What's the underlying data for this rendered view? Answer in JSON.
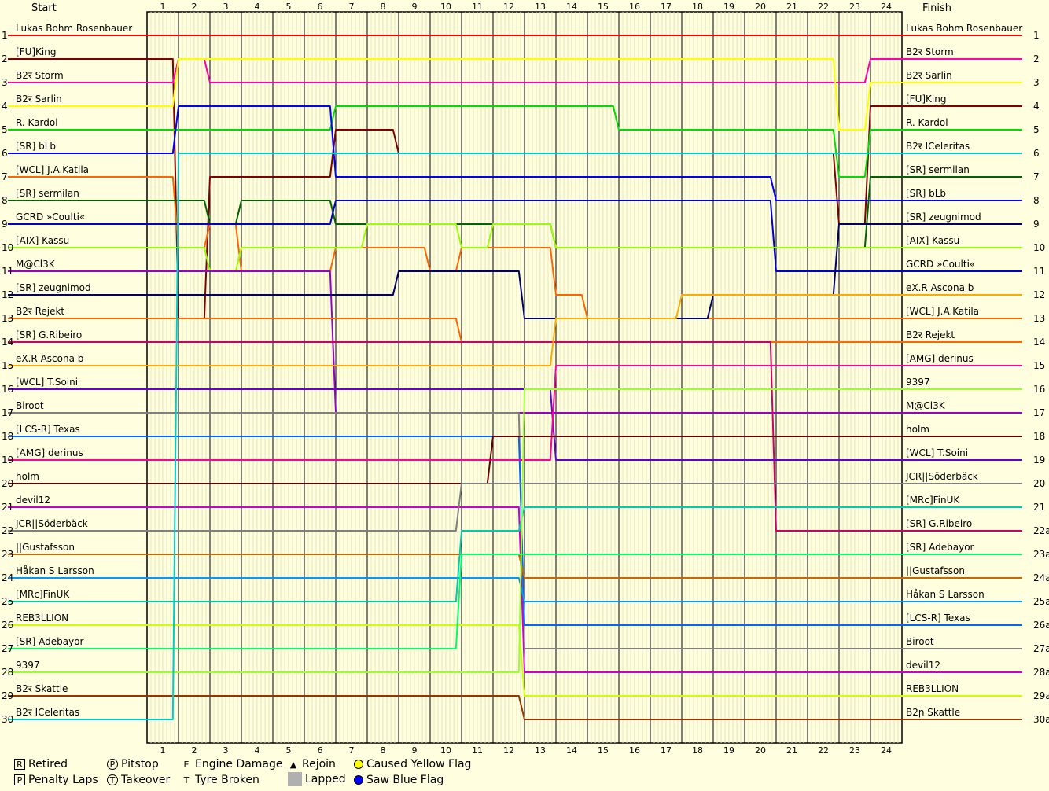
{
  "chart_data": {
    "type": "line",
    "header_start": "Start",
    "header_finish": "Finish",
    "laps": [
      1,
      2,
      3,
      4,
      5,
      6,
      7,
      8,
      9,
      10,
      11,
      12,
      13,
      14,
      15,
      16,
      17,
      18,
      19,
      20,
      21,
      22,
      23,
      24
    ],
    "positions_left": [
      "1",
      "2",
      "3",
      "4",
      "5",
      "6",
      "7",
      "8",
      "9",
      "10",
      "11",
      "12",
      "13",
      "14",
      "15",
      "16",
      "17",
      "18",
      "19",
      "20",
      "21",
      "22",
      "23",
      "24",
      "25",
      "26",
      "27",
      "28",
      "29",
      "30"
    ],
    "positions_right": [
      "1",
      "2",
      "3",
      "4",
      "5",
      "6",
      "7",
      "8",
      "9",
      "10",
      "11",
      "12",
      "13",
      "14",
      "15",
      "16",
      "17",
      "18",
      "19",
      "20",
      "21",
      "22a",
      "23a",
      "24a",
      "25a",
      "26a",
      "27a",
      "28a",
      "29a",
      "30a"
    ],
    "start_grid": [
      "Lukas Bohm Rosenbauer",
      "[FU]King",
      "B2र Storm",
      "B2र Sarlin",
      "R. Kardol",
      "[SR] bLb",
      "[WCL] J.A.Katila",
      "[SR] sermilan",
      "GCRD »Coulti«",
      "[AIX] Kassu",
      "M@Cl3K",
      "[SR] zeugnimod",
      "B2र Rejekt",
      "[SR] G.Ribeiro",
      "eX.R Ascona b",
      "[WCL] T.Soini",
      "Biroot",
      "[LCS-R] Texas",
      "[AMG] derinus",
      "holm",
      "devil12",
      "JCR||Söderbäck",
      "||Gustafsson",
      "Håkan S Larsson",
      "[MRc]FinUK",
      "REB3LLION",
      "[SR] Adebayor",
      "9397",
      "B2र Skattle",
      "B2र ICeleritas"
    ],
    "finish_order": [
      "Lukas Bohm Rosenbauer",
      "B2र Storm",
      "B2र Sarlin",
      "[FU]King",
      "R. Kardol",
      "B2र ICeleritas",
      "[SR] sermilan",
      "[SR] bLb",
      "[SR] zeugnimod",
      "[AIX] Kassu",
      "GCRD »Coulti«",
      "eX.R Ascona b",
      "[WCL] J.A.Katila",
      "B2र Rejekt",
      "[AMG] derinus",
      "9397",
      "M@Cl3K",
      "holm",
      "[WCL] T.Soini",
      "JCR||Söderbäck",
      "[MRc]FinUK",
      "[SR] G.Ribeiro",
      "[SR] Adebayor",
      "||Gustafsson",
      "Håkan S Larsson",
      "[LCS-R] Texas",
      "Biroot",
      "devil12",
      "REB3LLION",
      "B2ր Skattle"
    ],
    "colors": [
      "#ff0000",
      "#800000",
      "#ff00aa",
      "#ffff00",
      "#00dd00",
      "#0000ff",
      "#ff6600",
      "#006400",
      "#0000cc",
      "#99ff00",
      "#9900cc",
      "#000066",
      "#ff6600",
      "#cc0066",
      "#ffaa00",
      "#6600cc",
      "#808080",
      "#0066ff",
      "#ff0099",
      "#660000",
      "#cc00cc",
      "#808080",
      "#cc6600",
      "#0099ff",
      "#00ccaa",
      "#ccff00",
      "#00ff66",
      "#99ff33",
      "#993300",
      "#00cccc"
    ],
    "series": [
      {
        "name": "Lukas Bohm Rosenbauer",
        "values": [
          1,
          1,
          1,
          1,
          1,
          1,
          1,
          1,
          1,
          1,
          1,
          1,
          1,
          1,
          1,
          1,
          1,
          1,
          1,
          1,
          1,
          1,
          1,
          1,
          1
        ]
      },
      {
        "name": "[FU]King",
        "values": [
          2,
          13,
          7,
          7,
          7,
          7,
          5,
          5,
          6,
          6,
          6,
          6,
          6,
          6,
          6,
          6,
          6,
          6,
          6,
          6,
          6,
          6,
          9,
          4,
          4
        ]
      },
      {
        "name": "B2ր Storm",
        "values": [
          3,
          2,
          3,
          3,
          3,
          3,
          3,
          3,
          3,
          3,
          3,
          3,
          3,
          3,
          3,
          3,
          3,
          3,
          3,
          3,
          3,
          3,
          3,
          2,
          2
        ]
      },
      {
        "name": "B2ր Sarlin",
        "values": [
          4,
          2,
          2,
          2,
          2,
          2,
          2,
          2,
          2,
          2,
          2,
          2,
          2,
          2,
          2,
          2,
          2,
          2,
          2,
          2,
          2,
          2,
          5,
          3,
          3
        ]
      },
      {
        "name": "R. Kardol",
        "values": [
          5,
          5,
          5,
          5,
          5,
          5,
          4,
          4,
          4,
          4,
          4,
          4,
          4,
          4,
          4,
          5,
          5,
          5,
          5,
          5,
          5,
          5,
          7,
          5,
          5
        ]
      },
      {
        "name": "[SR] bLb",
        "values": [
          6,
          4,
          4,
          4,
          4,
          4,
          7,
          7,
          7,
          7,
          7,
          7,
          7,
          7,
          7,
          7,
          7,
          7,
          7,
          7,
          8,
          8,
          8,
          8,
          8
        ]
      },
      {
        "name": "[WCL] J.A.Katila",
        "values": [
          7,
          10,
          9,
          11,
          11,
          11,
          10,
          10,
          10,
          11,
          10,
          10,
          10,
          12,
          13,
          13,
          13,
          13,
          13,
          13,
          13,
          13,
          13,
          13,
          13
        ]
      },
      {
        "name": "[SR] sermilan",
        "values": [
          8,
          8,
          9,
          8,
          8,
          8,
          9,
          9,
          9,
          9,
          9,
          9,
          9,
          10,
          10,
          10,
          10,
          10,
          10,
          10,
          10,
          10,
          10,
          7,
          7
        ]
      },
      {
        "name": "GCRD »Coulti«",
        "values": [
          9,
          9,
          9,
          9,
          9,
          9,
          8,
          8,
          8,
          8,
          8,
          8,
          8,
          8,
          8,
          8,
          8,
          8,
          8,
          8,
          11,
          11,
          11,
          11,
          11
        ]
      },
      {
        "name": "[AIX] Kassu",
        "values": [
          10,
          10,
          11,
          10,
          10,
          10,
          10,
          9,
          9,
          9,
          10,
          9,
          9,
          10,
          10,
          10,
          10,
          10,
          10,
          10,
          10,
          10,
          10,
          10,
          10
        ]
      },
      {
        "name": "M@Cl3K",
        "values": [
          11,
          11,
          11,
          11,
          11,
          11,
          17,
          17,
          17,
          17,
          17,
          17,
          17,
          17,
          17,
          17,
          17,
          17,
          17,
          17,
          17,
          17,
          17,
          17,
          17
        ]
      },
      {
        "name": "[SR] zeugnimod",
        "values": [
          12,
          12,
          12,
          12,
          12,
          12,
          12,
          12,
          11,
          11,
          11,
          11,
          13,
          13,
          13,
          13,
          13,
          13,
          12,
          12,
          12,
          12,
          9,
          9,
          9
        ]
      },
      {
        "name": "B2ր Rejekt",
        "values": [
          13,
          13,
          13,
          13,
          13,
          13,
          13,
          13,
          13,
          13,
          14,
          14,
          14,
          14,
          14,
          14,
          14,
          14,
          14,
          14,
          14,
          14,
          14,
          14,
          14
        ]
      },
      {
        "name": "[SR] G.Ribeiro",
        "values": [
          14,
          14,
          14,
          14,
          14,
          14,
          14,
          14,
          14,
          14,
          14,
          14,
          14,
          14,
          14,
          14,
          14,
          14,
          14,
          14,
          22,
          22,
          22,
          22,
          22
        ]
      },
      {
        "name": "eX.R Ascona b",
        "values": [
          15,
          15,
          15,
          15,
          15,
          15,
          15,
          15,
          15,
          15,
          15,
          15,
          15,
          13,
          13,
          13,
          13,
          12,
          12,
          12,
          12,
          12,
          12,
          12,
          12
        ]
      },
      {
        "name": "[WCL] T.Soini",
        "values": [
          16,
          16,
          16,
          16,
          16,
          16,
          16,
          16,
          16,
          16,
          16,
          16,
          16,
          19,
          19,
          19,
          19,
          19,
          19,
          19,
          19,
          19,
          19,
          19,
          19
        ]
      },
      {
        "name": "Biroot",
        "values": [
          17,
          17,
          17,
          17,
          17,
          17,
          17,
          17,
          17,
          17,
          17,
          17,
          27,
          27,
          27,
          27,
          27,
          27,
          27,
          27,
          27,
          27,
          27,
          27,
          27
        ]
      },
      {
        "name": "[LCS-R] Texas",
        "values": [
          18,
          18,
          18,
          18,
          18,
          18,
          18,
          18,
          18,
          18,
          18,
          18,
          26,
          26,
          26,
          26,
          26,
          26,
          26,
          26,
          26,
          26,
          26,
          26,
          26
        ]
      },
      {
        "name": "[AMG] derinus",
        "values": [
          19,
          19,
          19,
          19,
          19,
          19,
          19,
          19,
          19,
          19,
          19,
          19,
          19,
          15,
          15,
          15,
          15,
          15,
          15,
          15,
          15,
          15,
          15,
          15,
          15
        ]
      },
      {
        "name": "holm",
        "values": [
          20,
          20,
          20,
          20,
          20,
          20,
          20,
          20,
          20,
          20,
          20,
          18,
          18,
          18,
          18,
          18,
          18,
          18,
          18,
          18,
          18,
          18,
          18,
          18,
          18
        ]
      },
      {
        "name": "devil12",
        "values": [
          21,
          21,
          21,
          21,
          21,
          21,
          21,
          21,
          21,
          21,
          21,
          21,
          28,
          28,
          28,
          28,
          28,
          28,
          28,
          28,
          28,
          28,
          28,
          28,
          28
        ]
      },
      {
        "name": "JCR||Söderbäck",
        "values": [
          22,
          22,
          22,
          22,
          22,
          22,
          22,
          22,
          22,
          22,
          20,
          20,
          20,
          20,
          20,
          20,
          20,
          20,
          20,
          20,
          20,
          20,
          20,
          20,
          20
        ]
      },
      {
        "name": "||Gustafsson",
        "values": [
          23,
          23,
          23,
          23,
          23,
          23,
          23,
          23,
          23,
          23,
          23,
          23,
          24,
          24,
          24,
          24,
          24,
          24,
          24,
          24,
          24,
          24,
          24,
          24,
          24
        ]
      },
      {
        "name": "Håkan S Larsson",
        "values": [
          24,
          24,
          24,
          24,
          24,
          24,
          24,
          24,
          24,
          24,
          24,
          24,
          25,
          25,
          25,
          25,
          25,
          25,
          25,
          25,
          25,
          25,
          25,
          25,
          25
        ]
      },
      {
        "name": "[MRc]FinUK",
        "values": [
          25,
          25,
          25,
          25,
          25,
          25,
          25,
          25,
          25,
          25,
          22,
          22,
          21,
          21,
          21,
          21,
          21,
          21,
          21,
          21,
          21,
          21,
          21,
          21,
          21
        ]
      },
      {
        "name": "REB3LLION",
        "values": [
          26,
          26,
          26,
          26,
          26,
          26,
          26,
          26,
          26,
          26,
          26,
          26,
          29,
          29,
          29,
          29,
          29,
          29,
          29,
          29,
          29,
          29,
          29,
          29,
          29
        ]
      },
      {
        "name": "[SR] Adebayor",
        "values": [
          27,
          27,
          27,
          27,
          27,
          27,
          27,
          27,
          27,
          27,
          23,
          23,
          23,
          23,
          23,
          23,
          23,
          23,
          23,
          23,
          23,
          23,
          23,
          23,
          23
        ]
      },
      {
        "name": "9397",
        "values": [
          28,
          28,
          28,
          28,
          28,
          28,
          28,
          28,
          28,
          28,
          28,
          28,
          16,
          16,
          16,
          16,
          16,
          16,
          16,
          16,
          16,
          16,
          16,
          16,
          16
        ]
      },
      {
        "name": "B2ր Skattle",
        "values": [
          29,
          29,
          29,
          29,
          29,
          29,
          29,
          29,
          29,
          29,
          29,
          29,
          30,
          30,
          30,
          30,
          30,
          30,
          30,
          30,
          30,
          30,
          30,
          30,
          30
        ]
      },
      {
        "name": "B2ր ICeleritas",
        "values": [
          30,
          6,
          6,
          6,
          6,
          6,
          6,
          6,
          6,
          6,
          6,
          6,
          6,
          6,
          6,
          6,
          6,
          6,
          6,
          6,
          6,
          6,
          6,
          6,
          6
        ]
      }
    ]
  },
  "legend": {
    "retired": {
      "icon": "R",
      "label": "Retired"
    },
    "penalty": {
      "icon": "P",
      "label": "Penalty Laps"
    },
    "pitstop": {
      "icon": "P",
      "label": "Pitstop"
    },
    "takeover": {
      "icon": "T",
      "label": "Takeover"
    },
    "engine": {
      "icon": "E",
      "label": "Engine Damage"
    },
    "tyre": {
      "icon": "T",
      "label": "Tyre Broken"
    },
    "rejoin": {
      "icon": "▲",
      "label": "Rejoin"
    },
    "lapped": {
      "label": "Lapped"
    },
    "yellow": {
      "label": "Caused Yellow Flag",
      "color": "#ffff00"
    },
    "blue": {
      "label": "Saw Blue Flag",
      "color": "#0000ff"
    }
  }
}
